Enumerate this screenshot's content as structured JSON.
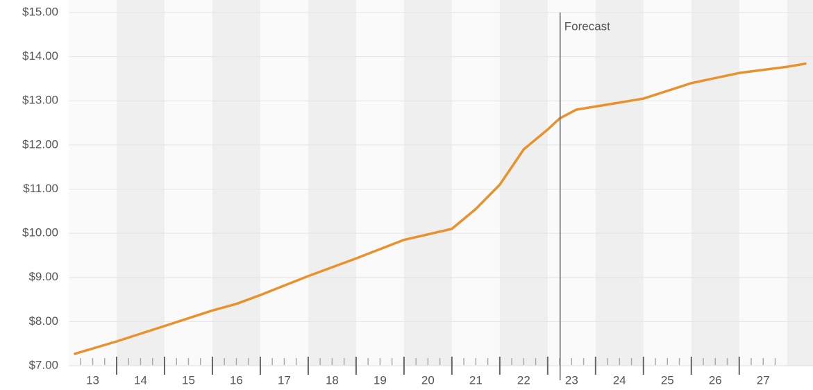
{
  "chart_data": {
    "type": "line",
    "x": [
      13.13,
      14,
      15,
      16,
      16.5,
      17,
      18,
      19,
      20,
      21,
      21.5,
      22,
      22.5,
      23,
      23.25,
      23.6,
      24,
      25,
      26,
      27,
      28,
      28.38
    ],
    "series": [
      {
        "color": "#e8912d",
        "values": [
          7.27,
          7.55,
          7.9,
          8.25,
          8.4,
          8.6,
          9.03,
          9.43,
          9.85,
          10.1,
          10.55,
          11.1,
          11.9,
          12.35,
          12.6,
          12.8,
          12.87,
          13.05,
          13.4,
          13.63,
          13.77,
          13.84
        ]
      }
    ],
    "xlim": [
      13,
      28.54
    ],
    "xticks": [
      13,
      14,
      15,
      16,
      17,
      18,
      19,
      20,
      21,
      22,
      23,
      24,
      25,
      26,
      27
    ],
    "ylim": [
      7,
      15
    ],
    "yticks": [
      {
        "value": 7,
        "label": "$7.00"
      },
      {
        "value": 8,
        "label": "$8.00"
      },
      {
        "value": 9,
        "label": "$9.00"
      },
      {
        "value": 10,
        "label": "$10.00"
      },
      {
        "value": 11,
        "label": "$11.00"
      },
      {
        "value": 12,
        "label": "$12.00"
      },
      {
        "value": 13,
        "label": "$13.00"
      },
      {
        "value": 14,
        "label": "$14.00"
      },
      {
        "value": 15,
        "label": "$15.00"
      }
    ],
    "grid": true,
    "annotation": {
      "text": "Forecast",
      "x": 23.26
    }
  }
}
